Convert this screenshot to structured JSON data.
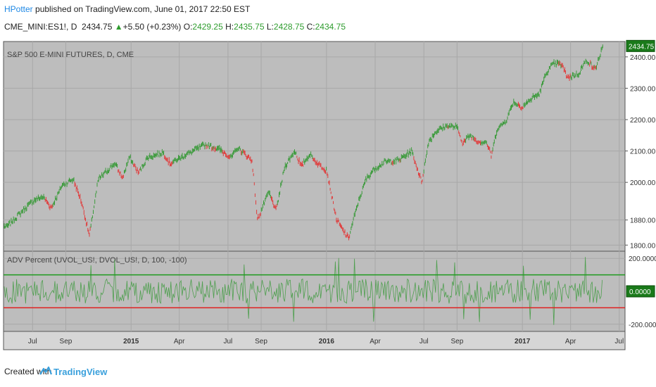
{
  "header": {
    "author": "HPotter",
    "published_text": "published on TradingView.com, June 01, 2017 22:50 EST",
    "symbol": "CME_MINI:ES1!, D",
    "last": "2434.75",
    "change": "+5.50 (+0.23%)",
    "o_label": "O:",
    "open": "2429.25",
    "h_label": "H:",
    "high": "2435.75",
    "l_label": "L:",
    "low": "2428.75",
    "c_label": "C:",
    "close": "2434.75"
  },
  "footer": {
    "created_with": "Created with",
    "brand": "TradingView"
  },
  "colors": {
    "panel_bg": "#bdbdbd",
    "up": "#3a9a3a",
    "down": "#e03c3c",
    "upper_line": "#1f9a1f",
    "lower_line": "#e02020",
    "osc": "#4f9f4f",
    "last_badge": "#1a7a1a"
  },
  "chart_data": [
    {
      "type": "line",
      "title": "S&P 500 E-MINI FUTURES, D, CME",
      "x_ticks": [
        "Jul",
        "Sep",
        "2015",
        "Apr",
        "Jul",
        "Sep",
        "2016",
        "Apr",
        "Jul",
        "Sep",
        "2017",
        "Apr",
        "Jul"
      ],
      "y_ticks": [
        "2400.00",
        "2300.00",
        "2200.00",
        "2100.00",
        "2000.00",
        "1880.00",
        "1800.00"
      ],
      "y_tick_values": [
        2400,
        2300,
        2200,
        2100,
        2000,
        1880,
        1800
      ],
      "ylim": [
        1785,
        2440
      ],
      "last_value_label": "2434.75",
      "series": [
        {
          "x": [
            "2014-05-15",
            "2014-06-15",
            "2014-07-01",
            "2014-07-20",
            "2014-08-05",
            "2014-08-25",
            "2014-09-15",
            "2014-10-01",
            "2014-10-15",
            "2014-11-01",
            "2014-12-01",
            "2014-12-16",
            "2014-12-29",
            "2015-01-15",
            "2015-02-01",
            "2015-03-01",
            "2015-03-15",
            "2015-04-15",
            "2015-05-20",
            "2015-06-15",
            "2015-07-07",
            "2015-07-20",
            "2015-08-15",
            "2015-08-25",
            "2015-09-15",
            "2015-09-29",
            "2015-10-15",
            "2015-11-03",
            "2015-11-15",
            "2015-12-01",
            "2015-12-15",
            "2016-01-01",
            "2016-01-20",
            "2016-02-11",
            "2016-03-01",
            "2016-03-15",
            "2016-04-01",
            "2016-04-20",
            "2016-05-15",
            "2016-06-08",
            "2016-06-27",
            "2016-07-10",
            "2016-07-25",
            "2016-08-15",
            "2016-09-01",
            "2016-09-12",
            "2016-09-25",
            "2016-10-10",
            "2016-10-25",
            "2016-11-04",
            "2016-11-15",
            "2016-12-01",
            "2016-12-15",
            "2017-01-01",
            "2017-01-20",
            "2017-02-01",
            "2017-02-15",
            "2017-03-01",
            "2017-03-15",
            "2017-03-27",
            "2017-04-15",
            "2017-05-01",
            "2017-05-17",
            "2017-06-01"
          ],
          "values": [
            1860,
            1915,
            1940,
            1955,
            1920,
            1990,
            2010,
            1935,
            1830,
            2010,
            2060,
            2015,
            2080,
            2030,
            2080,
            2095,
            2060,
            2090,
            2120,
            2105,
            2080,
            2110,
            2070,
            1880,
            1970,
            1910,
            2050,
            2100,
            2050,
            2090,
            2060,
            2040,
            1880,
            1820,
            1940,
            2010,
            2045,
            2065,
            2070,
            2100,
            2000,
            2130,
            2165,
            2180,
            2175,
            2125,
            2150,
            2130,
            2130,
            2085,
            2170,
            2195,
            2255,
            2240,
            2270,
            2280,
            2350,
            2380,
            2375,
            2335,
            2345,
            2390,
            2360,
            2435
          ]
        }
      ]
    },
    {
      "type": "line",
      "title": "ADV Percent (UVOL_US!, DVOL_US!, D, 100, -100)",
      "y_ticks": [
        "200.0000",
        "-200.0000"
      ],
      "y_tick_values": [
        200,
        -200
      ],
      "ylim": [
        -235,
        235
      ],
      "last_value_label": "0.0000",
      "levels": [
        100,
        -100
      ],
      "series": [
        {
          "description": "oscillating daily values mostly between -100 and 100 with occasional spikes to about ±200",
          "range": [
            -215,
            215
          ]
        }
      ]
    }
  ]
}
